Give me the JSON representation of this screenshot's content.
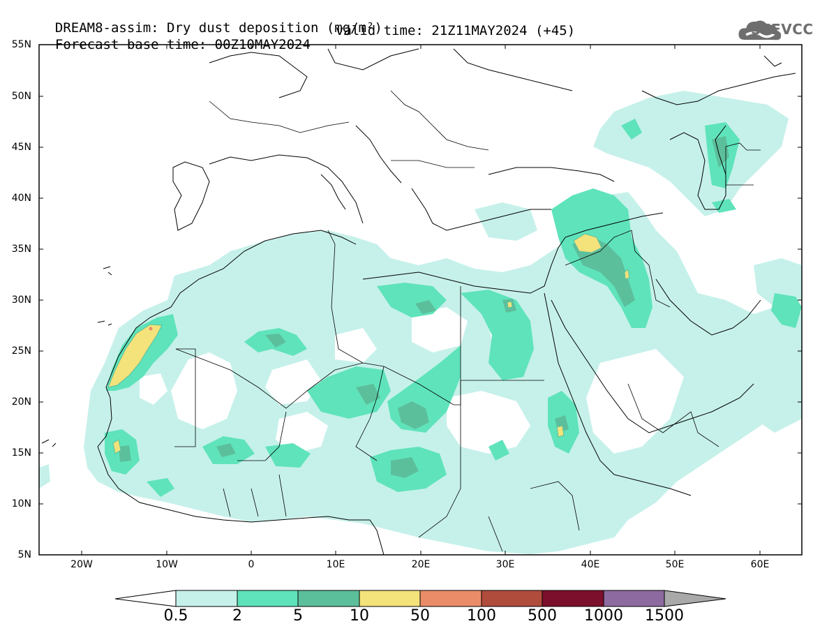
{
  "title": {
    "line1": "DREAM8-assim: Dry dust deposition (mg/m²)",
    "line2_left": "Forecast base time: 00Z10MAY2024",
    "line2_right": "valid time: 21Z11MAY2024 (+45)"
  },
  "logo": {
    "text": "SEEVCCC",
    "icon": "cloud-logo-icon"
  },
  "map": {
    "lat_ticks": [
      "55N",
      "50N",
      "45N",
      "40N",
      "35N",
      "30N",
      "25N",
      "20N",
      "15N",
      "10N",
      "5N"
    ],
    "lon_ticks": [
      "20W",
      "10W",
      "0",
      "10E",
      "20E",
      "30E",
      "40E",
      "50E",
      "60E"
    ]
  },
  "colorbar": {
    "labels": [
      "0.5",
      "2",
      "5",
      "10",
      "50",
      "100",
      "500",
      "1000",
      "1500"
    ],
    "colors": [
      "#c6f1ea",
      "#5fe3bb",
      "#5cbf9b",
      "#f4e27b",
      "#ea8c68",
      "#b04c3c",
      "#7c0f2c",
      "#8d6a9f",
      "#a9a9a9"
    ],
    "under_color": "#ffffff",
    "over_color": "#a9a9a9"
  }
}
